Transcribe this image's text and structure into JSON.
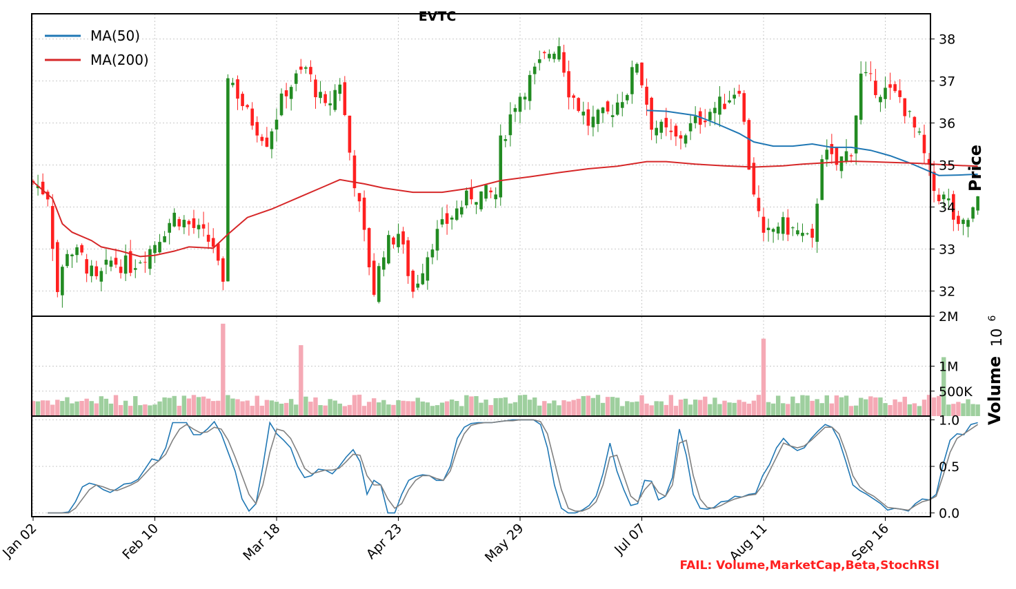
{
  "chart_data": [
    {
      "panel": "price",
      "type": "candlestick",
      "title": "EVTC",
      "ylabel": "Price",
      "ylim": [
        31.4,
        38.6
      ],
      "yticks": [
        32,
        33,
        34,
        35,
        36,
        37,
        38
      ],
      "x_tick_labels": [
        "Jan 02",
        "Feb 10",
        "Mar 18",
        "Apr 23",
        "May 29",
        "Jul 07",
        "Aug 11",
        "Sep 16"
      ],
      "x_tick_index": [
        0,
        25,
        50,
        75,
        100,
        125,
        150,
        175
      ],
      "grid": true,
      "legend": {
        "placement": "top-left",
        "entries": [
          "MA(50)",
          "MA(200)"
        ]
      },
      "up_color": "#228b22",
      "down_color": "#ff2020",
      "series": [
        {
          "name": "MA(50)",
          "color": "#1f77b4",
          "points": [
            [
              126,
              36.3
            ],
            [
              130,
              36.28
            ],
            [
              136,
              36.18
            ],
            [
              140,
              36.0
            ],
            [
              145,
              35.75
            ],
            [
              148,
              35.55
            ],
            [
              152,
              35.45
            ],
            [
              156,
              35.45
            ],
            [
              160,
              35.5
            ],
            [
              164,
              35.42
            ],
            [
              168,
              35.42
            ],
            [
              172,
              35.35
            ],
            [
              176,
              35.22
            ],
            [
              180,
              35.05
            ],
            [
              184,
              34.85
            ],
            [
              186,
              34.75
            ],
            [
              190,
              34.76
            ],
            [
              194,
              34.78
            ]
          ]
        },
        {
          "name": "MA(200)",
          "color": "#d62728",
          "points": [
            [
              0,
              34.6
            ],
            [
              4,
              34.2
            ],
            [
              6,
              33.6
            ],
            [
              8,
              33.4
            ],
            [
              12,
              33.2
            ],
            [
              14,
              33.05
            ],
            [
              18,
              32.95
            ],
            [
              22,
              32.82
            ],
            [
              25,
              32.85
            ],
            [
              29,
              32.95
            ],
            [
              32,
              33.05
            ],
            [
              37,
              33.02
            ],
            [
              40,
              33.35
            ],
            [
              44,
              33.75
            ],
            [
              49,
              33.95
            ],
            [
              55,
              34.25
            ],
            [
              60,
              34.5
            ],
            [
              63,
              34.65
            ],
            [
              68,
              34.55
            ],
            [
              72,
              34.45
            ],
            [
              78,
              34.35
            ],
            [
              84,
              34.35
            ],
            [
              90,
              34.45
            ],
            [
              96,
              34.63
            ],
            [
              102,
              34.72
            ],
            [
              108,
              34.82
            ],
            [
              114,
              34.91
            ],
            [
              120,
              34.97
            ],
            [
              126,
              35.08
            ],
            [
              130,
              35.08
            ],
            [
              136,
              35.02
            ],
            [
              142,
              34.98
            ],
            [
              148,
              34.95
            ],
            [
              154,
              34.98
            ],
            [
              158,
              35.02
            ],
            [
              164,
              35.06
            ],
            [
              168,
              35.09
            ],
            [
              174,
              35.07
            ],
            [
              182,
              35.04
            ],
            [
              188,
              35.0
            ],
            [
              194,
              34.97
            ]
          ]
        }
      ]
    },
    {
      "panel": "volume",
      "type": "bar",
      "ylabel": "Volume",
      "ylim": [
        0,
        2000000
      ],
      "yticks": [
        500000,
        1000000,
        2000000
      ],
      "ytick_labels": [
        "500K",
        "1M",
        "2M"
      ],
      "offset_label": "10^6",
      "up_color": "#9ecf9e",
      "down_color": "#f5a9b5"
    },
    {
      "panel": "stochrsi",
      "type": "line",
      "ylim": [
        -0.04,
        1.04
      ],
      "yticks": [
        0.0,
        0.5,
        1.0
      ],
      "ytick_labels": [
        "0.0",
        "0.5",
        "1.0"
      ],
      "series": [
        {
          "name": "K",
          "color": "#1f77b4",
          "values": [
            0,
            0,
            0,
            0.01,
            0.12,
            0.28,
            0.32,
            0.3,
            0.25,
            0.22,
            0.26,
            0.31,
            0.32,
            0.36,
            0.47,
            0.58,
            0.56,
            0.7,
            0.97,
            0.97,
            0.97,
            0.84,
            0.84,
            0.9,
            0.98,
            0.85,
            0.65,
            0.45,
            0.15,
            0.02,
            0.1,
            0.5,
            0.97,
            0.85,
            0.78,
            0.7,
            0.5,
            0.38,
            0.4,
            0.47,
            0.46,
            0.42,
            0.5,
            0.6,
            0.68,
            0.55,
            0.2,
            0.35,
            0.3,
            0.0,
            0.0,
            0.2,
            0.35,
            0.39,
            0.41,
            0.4,
            0.35,
            0.35,
            0.5,
            0.8,
            0.92,
            0.96,
            0.97,
            0.97,
            0.97,
            0.98,
            0.99,
            1.0,
            1.0,
            1.0,
            1.0,
            0.95,
            0.7,
            0.3,
            0.05,
            0.0,
            0.0,
            0.03,
            0.08,
            0.18,
            0.42,
            0.75,
            0.45,
            0.25,
            0.08,
            0.1,
            0.35,
            0.34,
            0.14,
            0.18,
            0.38,
            0.9,
            0.62,
            0.2,
            0.05,
            0.04,
            0.06,
            0.12,
            0.13,
            0.18,
            0.17,
            0.2,
            0.21,
            0.4,
            0.52,
            0.7,
            0.8,
            0.72,
            0.67,
            0.7,
            0.8,
            0.88,
            0.95,
            0.92,
            0.78,
            0.55,
            0.3,
            0.24,
            0.2,
            0.15,
            0.1,
            0.03,
            0.05,
            0.04,
            0.02,
            0.1,
            0.15,
            0.14,
            0.2,
            0.52,
            0.78,
            0.85,
            0.84,
            0.95,
            0.97
          ]
        },
        {
          "name": "D",
          "color": "#808080",
          "values": [
            0,
            0,
            0,
            0,
            0.05,
            0.15,
            0.25,
            0.3,
            0.28,
            0.25,
            0.24,
            0.27,
            0.3,
            0.34,
            0.42,
            0.5,
            0.56,
            0.63,
            0.78,
            0.9,
            0.95,
            0.9,
            0.86,
            0.87,
            0.92,
            0.9,
            0.78,
            0.6,
            0.4,
            0.2,
            0.1,
            0.3,
            0.65,
            0.9,
            0.88,
            0.8,
            0.65,
            0.48,
            0.42,
            0.44,
            0.46,
            0.46,
            0.48,
            0.55,
            0.63,
            0.62,
            0.4,
            0.3,
            0.3,
            0.15,
            0.05,
            0.1,
            0.25,
            0.35,
            0.4,
            0.4,
            0.37,
            0.35,
            0.45,
            0.68,
            0.85,
            0.94,
            0.96,
            0.97,
            0.97,
            0.98,
            0.99,
            0.99,
            1.0,
            1.0,
            1.0,
            0.98,
            0.85,
            0.55,
            0.25,
            0.05,
            0.02,
            0.02,
            0.05,
            0.12,
            0.3,
            0.6,
            0.62,
            0.4,
            0.18,
            0.12,
            0.25,
            0.33,
            0.22,
            0.18,
            0.3,
            0.75,
            0.78,
            0.4,
            0.15,
            0.06,
            0.05,
            0.08,
            0.12,
            0.15,
            0.17,
            0.19,
            0.2,
            0.3,
            0.45,
            0.6,
            0.75,
            0.72,
            0.7,
            0.72,
            0.78,
            0.85,
            0.92,
            0.92,
            0.85,
            0.65,
            0.4,
            0.28,
            0.22,
            0.18,
            0.12,
            0.06,
            0.05,
            0.04,
            0.03,
            0.08,
            0.12,
            0.14,
            0.18,
            0.4,
            0.65,
            0.8,
            0.85,
            0.9,
            0.95
          ]
        }
      ]
    }
  ],
  "fail_text": "FAIL: Volume,MarketCap,Beta,StochRSI"
}
